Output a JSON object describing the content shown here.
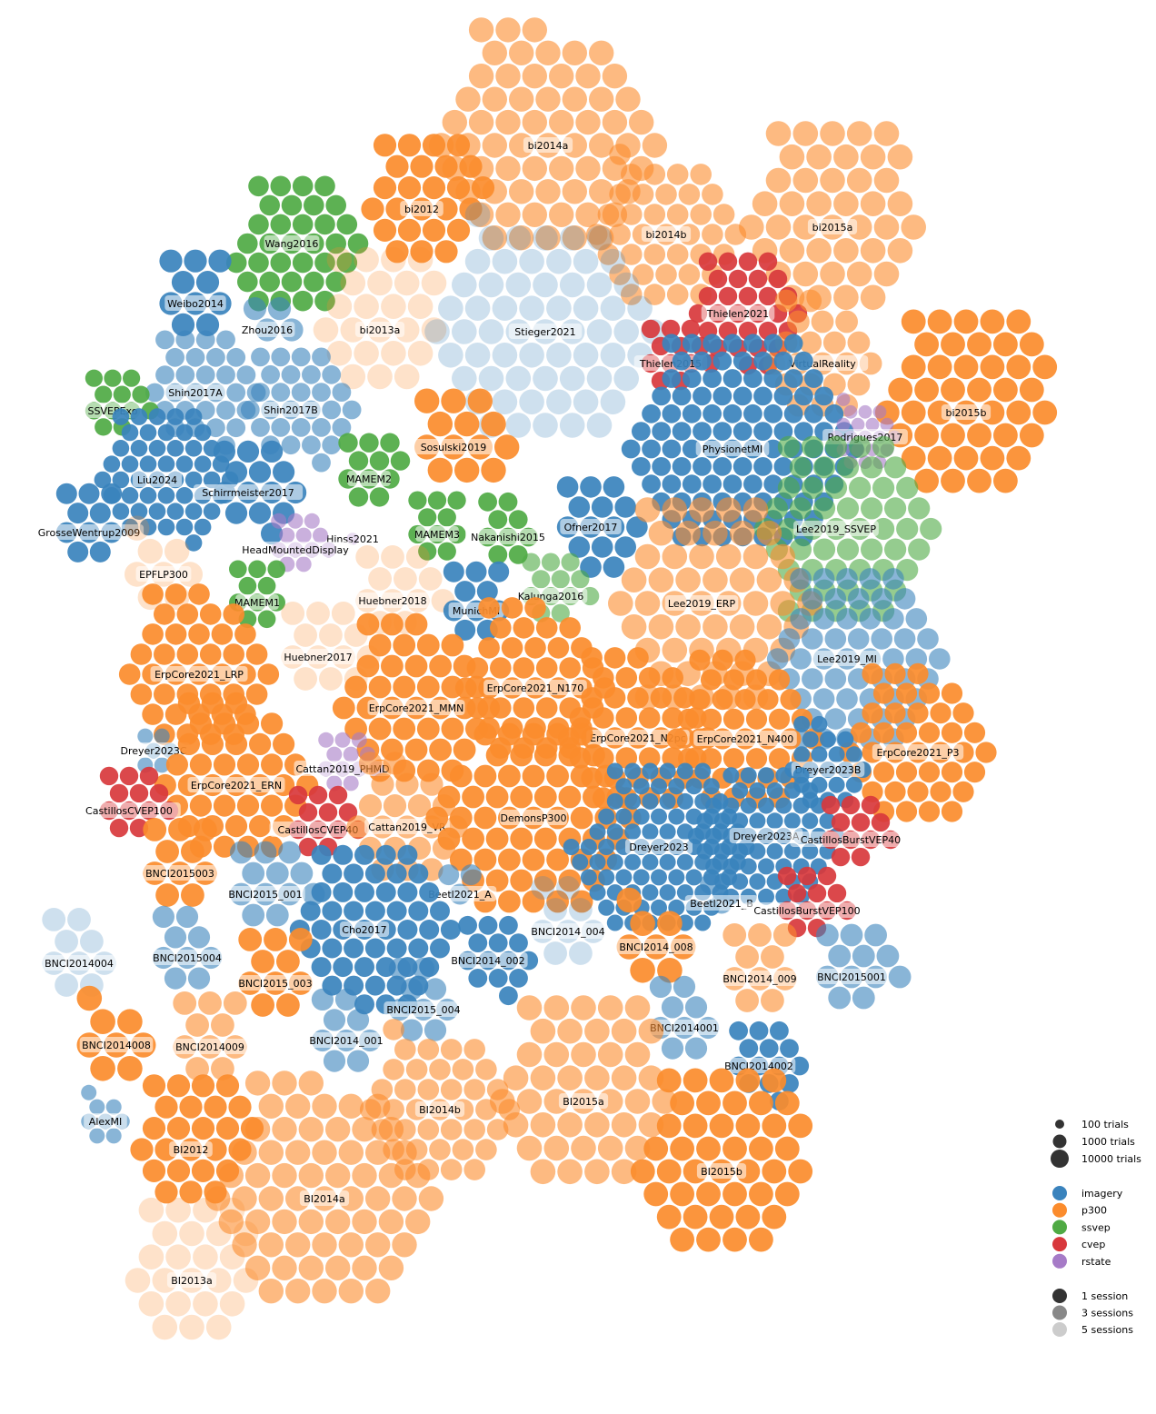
{
  "chart_data": {
    "type": "scatter",
    "title": "",
    "colors": {
      "imagery": "#3a83bd",
      "p300": "#fb8c2d",
      "ssvep": "#4faa44",
      "cvep": "#d8383c",
      "rstate": "#a67bc7"
    },
    "session_opacity": {
      "1": 0.92,
      "3": 0.6,
      "5": 0.25
    },
    "legend": {
      "sizes": [
        "100 trials",
        "1000 trials",
        "10000 trials"
      ],
      "paradigms": [
        {
          "key": "imagery",
          "label": "imagery"
        },
        {
          "key": "p300",
          "label": "p300"
        },
        {
          "key": "ssvep",
          "label": "ssvep"
        },
        {
          "key": "cvep",
          "label": "cvep"
        },
        {
          "key": "rstate",
          "label": "rstate"
        }
      ],
      "sessions": [
        {
          "label": "1 session",
          "shade": "#333333"
        },
        {
          "label": "3 sessions",
          "shade": "#888888"
        },
        {
          "label": "5 sessions",
          "shade": "#cccccc"
        }
      ]
    },
    "datasets": [
      {
        "name": "bi2014a",
        "paradigm": "p300",
        "subjects": 64,
        "sessions": 3,
        "trials": 8000
      },
      {
        "name": "bi2012",
        "paradigm": "p300",
        "subjects": 25,
        "sessions": 1,
        "trials": 4000
      },
      {
        "name": "Wang2016",
        "paradigm": "ssvep",
        "subjects": 34,
        "sessions": 1,
        "trials": 1800
      },
      {
        "name": "bi2014b",
        "paradigm": "p300",
        "subjects": 38,
        "sessions": 3,
        "trials": 2500
      },
      {
        "name": "bi2015a",
        "paradigm": "p300",
        "subjects": 43,
        "sessions": 3,
        "trials": 9000
      },
      {
        "name": "Weibo2014",
        "paradigm": "imagery",
        "subjects": 10,
        "sessions": 1,
        "trials": 4000
      },
      {
        "name": "Zhou2016",
        "paradigm": "imagery",
        "subjects": 4,
        "sessions": 3,
        "trials": 4000
      },
      {
        "name": "bi2013a",
        "paradigm": "p300",
        "subjects": 24,
        "sessions": 5,
        "trials": 9000
      },
      {
        "name": "Stieger2021",
        "paradigm": "imagery",
        "subjects": 62,
        "sessions": 5,
        "trials": 9000
      },
      {
        "name": "Thielen2021",
        "paradigm": "cvep",
        "subjects": 30,
        "sessions": 1,
        "trials": 900
      },
      {
        "name": "Thielen2015",
        "paradigm": "cvep",
        "subjects": 12,
        "sessions": 1,
        "trials": 900
      },
      {
        "name": "VirtualReality",
        "paradigm": "p300",
        "subjects": 21,
        "sessions": 3,
        "trials": 3500
      },
      {
        "name": "Shin2017A",
        "paradigm": "imagery",
        "subjects": 29,
        "sessions": 3,
        "trials": 1000
      },
      {
        "name": "Shin2017B",
        "paradigm": "imagery",
        "subjects": 29,
        "sessions": 3,
        "trials": 1000
      },
      {
        "name": "SSVEPExo",
        "paradigm": "ssvep",
        "subjects": 12,
        "sessions": 1,
        "trials": 600
      },
      {
        "name": "bi2015b",
        "paradigm": "p300",
        "subjects": 44,
        "sessions": 1,
        "trials": 7000
      },
      {
        "name": "Sosulski2019",
        "paradigm": "p300",
        "subjects": 13,
        "sessions": 1,
        "trials": 8000
      },
      {
        "name": "PhysionetMI",
        "paradigm": "imagery",
        "subjects": 109,
        "sessions": 1,
        "trials": 1000
      },
      {
        "name": "Rodrigues2017",
        "paradigm": "rstate",
        "subjects": 20,
        "sessions": 3,
        "trials": 150
      },
      {
        "name": "Liu2024",
        "paradigm": "imagery",
        "subjects": 50,
        "sessions": 1,
        "trials": 500
      },
      {
        "name": "Schirrmeister2017",
        "paradigm": "imagery",
        "subjects": 14,
        "sessions": 1,
        "trials": 3000
      },
      {
        "name": "MAMEM2",
        "paradigm": "ssvep",
        "subjects": 11,
        "sessions": 1,
        "trials": 1200
      },
      {
        "name": "Lee2019_SSVEP",
        "paradigm": "ssvep",
        "subjects": 54,
        "sessions": 3,
        "trials": 3000
      },
      {
        "name": "GrosseWentrup2009",
        "paradigm": "imagery",
        "subjects": 10,
        "sessions": 1,
        "trials": 2000
      },
      {
        "name": "Hinss2021",
        "paradigm": "rstate",
        "subjects": 1,
        "sessions": 3,
        "trials": 100
      },
      {
        "name": "MAMEM3",
        "paradigm": "ssvep",
        "subjects": 10,
        "sessions": 1,
        "trials": 800
      },
      {
        "name": "Nakanishi2015",
        "paradigm": "ssvep",
        "subjects": 9,
        "sessions": 1,
        "trials": 1000
      },
      {
        "name": "Ofner2017",
        "paradigm": "imagery",
        "subjects": 15,
        "sessions": 1,
        "trials": 2500
      },
      {
        "name": "HeadMountedDisplay",
        "paradigm": "rstate",
        "subjects": 12,
        "sessions": 3,
        "trials": 300
      },
      {
        "name": "EPFLP300",
        "paradigm": "p300",
        "subjects": 8,
        "sessions": 5,
        "trials": 8000
      },
      {
        "name": "Kalunga2016",
        "paradigm": "ssvep",
        "subjects": 12,
        "sessions": 3,
        "trials": 800
      },
      {
        "name": "Lee2019_ERP",
        "paradigm": "p300",
        "subjects": 54,
        "sessions": 3,
        "trials": 9000
      },
      {
        "name": "MAMEM1",
        "paradigm": "ssvep",
        "subjects": 10,
        "sessions": 1,
        "trials": 700
      },
      {
        "name": "Huebner2018",
        "paradigm": "p300",
        "subjects": 12,
        "sessions": 5,
        "trials": 5000
      },
      {
        "name": "MunichMI",
        "paradigm": "imagery",
        "subjects": 10,
        "sessions": 1,
        "trials": 2000
      },
      {
        "name": "Lee2019_MI",
        "paradigm": "imagery",
        "subjects": 54,
        "sessions": 3,
        "trials": 2500
      },
      {
        "name": "ErpCore2021_LRP",
        "paradigm": "p300",
        "subjects": 40,
        "sessions": 1,
        "trials": 2500
      },
      {
        "name": "Huebner2017",
        "paradigm": "p300",
        "subjects": 13,
        "sessions": 5,
        "trials": 5000
      },
      {
        "name": "ErpCore2021_MMN",
        "paradigm": "p300",
        "subjects": 40,
        "sessions": 1,
        "trials": 3500
      },
      {
        "name": "ErpCore2021_N170",
        "paradigm": "p300",
        "subjects": 40,
        "sessions": 1,
        "trials": 2500
      },
      {
        "name": "ErpCore2021_N2pc",
        "paradigm": "p300",
        "subjects": 40,
        "sessions": 1,
        "trials": 2500
      },
      {
        "name": "ErpCore2021_N400",
        "paradigm": "p300",
        "subjects": 40,
        "sessions": 1,
        "trials": 2200
      },
      {
        "name": "ErpCore2021_P3",
        "paradigm": "p300",
        "subjects": 40,
        "sessions": 1,
        "trials": 2200
      },
      {
        "name": "Dreyer2023C",
        "paradigm": "imagery",
        "subjects": 6,
        "sessions": 3,
        "trials": 300
      },
      {
        "name": "ErpCore2021_ERN",
        "paradigm": "p300",
        "subjects": 40,
        "sessions": 1,
        "trials": 3000
      },
      {
        "name": "Cattan2019_PHMD",
        "paradigm": "rstate",
        "subjects": 12,
        "sessions": 3,
        "trials": 300
      },
      {
        "name": "Dreyer2023B",
        "paradigm": "imagery",
        "subjects": 21,
        "sessions": 1,
        "trials": 400
      },
      {
        "name": "CastillosCVEP100",
        "paradigm": "cvep",
        "subjects": 12,
        "sessions": 1,
        "trials": 900
      },
      {
        "name": "CastillosCVEP40",
        "paradigm": "cvep",
        "subjects": 12,
        "sessions": 1,
        "trials": 900
      },
      {
        "name": "Cattan2019_VR",
        "paradigm": "p300",
        "subjects": 21,
        "sessions": 3,
        "trials": 4000
      },
      {
        "name": "DemonsP300",
        "paradigm": "p300",
        "subjects": 60,
        "sessions": 1,
        "trials": 3500
      },
      {
        "name": "Dreyer2023",
        "paradigm": "imagery",
        "subjects": 87,
        "sessions": 1,
        "trials": 400
      },
      {
        "name": "Dreyer2023A",
        "paradigm": "imagery",
        "subjects": 60,
        "sessions": 1,
        "trials": 400
      },
      {
        "name": "CastillosBurstVEP40",
        "paradigm": "cvep",
        "subjects": 12,
        "sessions": 1,
        "trials": 900
      },
      {
        "name": "BNCI2015003",
        "paradigm": "p300",
        "subjects": 10,
        "sessions": 1,
        "trials": 5000
      },
      {
        "name": "BNCI2015_001",
        "paradigm": "imagery",
        "subjects": 12,
        "sessions": 3,
        "trials": 3500
      },
      {
        "name": "Beetl2021_A",
        "paradigm": "imagery",
        "subjects": 3,
        "sessions": 3,
        "trials": 2000
      },
      {
        "name": "Beetl2021_B",
        "paradigm": "imagery",
        "subjects": 2,
        "sessions": 3,
        "trials": 2000
      },
      {
        "name": "CastillosBurstVEP100",
        "paradigm": "cvep",
        "subjects": 12,
        "sessions": 1,
        "trials": 900
      },
      {
        "name": "Cho2017",
        "paradigm": "imagery",
        "subjects": 52,
        "sessions": 1,
        "trials": 1500
      },
      {
        "name": "BNCI2014_004",
        "paradigm": "imagery",
        "subjects": 9,
        "sessions": 5,
        "trials": 5000
      },
      {
        "name": "BNCI2014004",
        "paradigm": "imagery",
        "subjects": 9,
        "sessions": 5,
        "trials": 5000
      },
      {
        "name": "BNCI2015004",
        "paradigm": "imagery",
        "subjects": 9,
        "sessions": 3,
        "trials": 3000
      },
      {
        "name": "BNCI2014_002",
        "paradigm": "imagery",
        "subjects": 14,
        "sessions": 1,
        "trials": 1000
      },
      {
        "name": "BNCI2014_008",
        "paradigm": "p300",
        "subjects": 8,
        "sessions": 1,
        "trials": 9000
      },
      {
        "name": "BNCI2015_003",
        "paradigm": "p300",
        "subjects": 10,
        "sessions": 1,
        "trials": 5000
      },
      {
        "name": "BNCI2014_009",
        "paradigm": "p300",
        "subjects": 10,
        "sessions": 3,
        "trials": 5000
      },
      {
        "name": "BNCI2015001",
        "paradigm": "imagery",
        "subjects": 12,
        "sessions": 3,
        "trials": 3500
      },
      {
        "name": "BNCI2015_004",
        "paradigm": "imagery",
        "subjects": 9,
        "sessions": 3,
        "trials": 3000
      },
      {
        "name": "BNCI2014_001",
        "paradigm": "imagery",
        "subjects": 9,
        "sessions": 3,
        "trials": 3000
      },
      {
        "name": "BNCI2014001",
        "paradigm": "imagery",
        "subjects": 9,
        "sessions": 3,
        "trials": 3000
      },
      {
        "name": "BNCI2014008",
        "paradigm": "p300",
        "subjects": 8,
        "sessions": 1,
        "trials": 9000
      },
      {
        "name": "BNCI2014009",
        "paradigm": "p300",
        "subjects": 10,
        "sessions": 3,
        "trials": 5000
      },
      {
        "name": "BNCI2014002",
        "paradigm": "imagery",
        "subjects": 14,
        "sessions": 1,
        "trials": 1000
      },
      {
        "name": "BI2014b",
        "paradigm": "p300",
        "subjects": 38,
        "sessions": 3,
        "trials": 2500
      },
      {
        "name": "BI2015a",
        "paradigm": "p300",
        "subjects": 43,
        "sessions": 3,
        "trials": 9000
      },
      {
        "name": "AlexMI",
        "paradigm": "imagery",
        "subjects": 8,
        "sessions": 3,
        "trials": 300
      },
      {
        "name": "BI2012",
        "paradigm": "p300",
        "subjects": 25,
        "sessions": 1,
        "trials": 4000
      },
      {
        "name": "BI2015b",
        "paradigm": "p300",
        "subjects": 44,
        "sessions": 1,
        "trials": 7000
      },
      {
        "name": "BI2014a",
        "paradigm": "p300",
        "subjects": 64,
        "sessions": 3,
        "trials": 8000
      },
      {
        "name": "BI2013a",
        "paradigm": "p300",
        "subjects": 24,
        "sessions": 5,
        "trials": 9000
      }
    ]
  }
}
